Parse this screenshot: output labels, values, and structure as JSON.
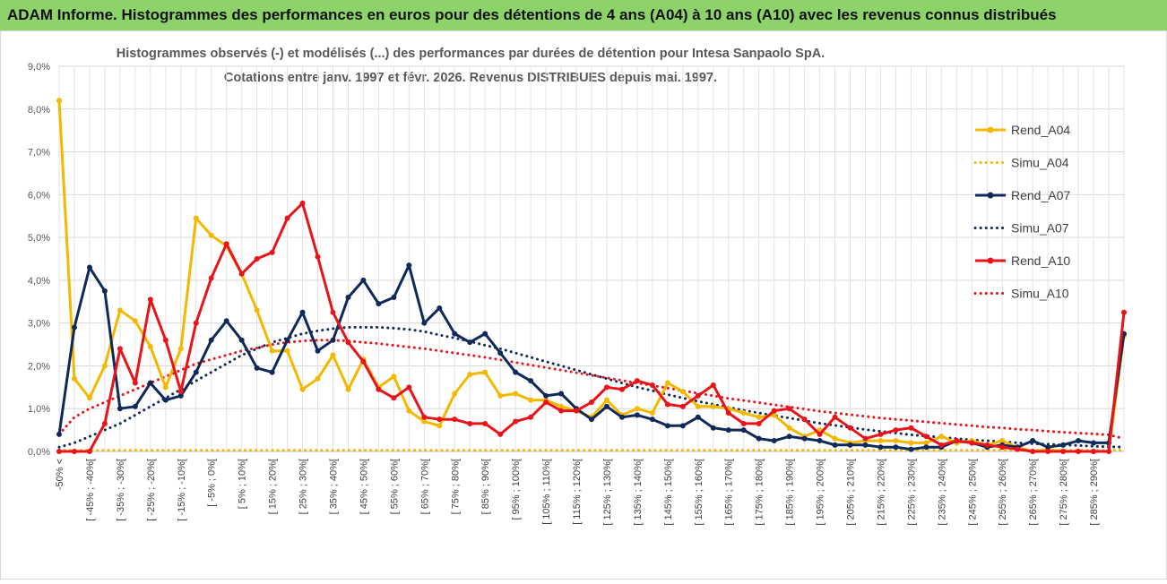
{
  "header": {
    "title": "ADAM Informe. Histogrammes des performances en euros pour des détentions de 4 ans (A04) à 10 ans (A10) avec les revenus connus distribués"
  },
  "chart_data": {
    "type": "line",
    "title_line1": "Histogrammes observés (-) et modélisés (...) des performances par durées de détention pour Intesa Sanpaolo SpA.",
    "title_line2": "Cotations entre janv. 1997 et févr. 2026. Revenus DISTRIBUES depuis mai. 1997.",
    "xlabel": "",
    "ylabel": "",
    "ylim": [
      0,
      9
    ],
    "y_ticks": [
      "0,0%",
      "1,0%",
      "2,0%",
      "3,0%",
      "4,0%",
      "5,0%",
      "6,0%",
      "7,0%",
      "8,0%",
      "9,0%"
    ],
    "grid": true,
    "legend_position": "right",
    "categories": [
      "-50% <",
      "[ -50% ; -45%[",
      "[ -45% ; -40%[",
      "[ -40% ; -35%[",
      "[ -35% ; -30%[",
      "[ -30% ; -25%[",
      "[ -25% ; -20%[",
      "[ -20% ; -15%[",
      "[ -15% ; -10%[",
      "[ -10% ; -5%[",
      "[ -5% ; 0%[",
      "[ 0% ; 5%[",
      "[ 5% ; 10%[",
      "[ 10% ; 15%[",
      "[ 15% ; 20%[",
      "[ 20% ; 25%[",
      "[ 25% ; 30%[",
      "[ 30% ; 35%[",
      "[ 35% ; 40%[",
      "[ 40% ; 45%[",
      "[ 45% ; 50%[",
      "[ 50% ; 55%[",
      "[ 55% ; 60%[",
      "[ 60% ; 65%[",
      "[ 65% ; 70%[",
      "[ 70% ; 75%[",
      "[ 75% ; 80%[",
      "[ 80% ; 85%[",
      "[ 85% ; 90%[",
      "[ 90% ; 95%[",
      "[ 95% ; 100%[",
      "[ 100% ; 105%[",
      "[ 105% ; 110%[",
      "[ 110% ; 115%[",
      "[ 115% ; 120%[",
      "[ 120% ; 125%[",
      "[ 125% ; 130%[",
      "[ 130% ; 135%[",
      "[ 135% ; 140%[",
      "[ 140% ; 145%[",
      "[ 145% ; 150%[",
      "[ 150% ; 155%[",
      "[ 155% ; 160%[",
      "[ 160% ; 165%[",
      "[ 165% ; 170%[",
      "[ 170% ; 175%[",
      "[ 175% ; 180%[",
      "[ 180% ; 185%[",
      "[ 185% ; 190%[",
      "[ 190% ; 195%[",
      "[ 195% ; 200%[",
      "[ 200% ; 205%[",
      "[ 205% ; 210%[",
      "[ 210% ; 215%[",
      "[ 215% ; 220%[",
      "[ 220% ; 225%[",
      "[ 225% ; 230%[",
      "[ 230% ; 235%[",
      "[ 235% ; 240%[",
      "[ 240% ; 245%[",
      "[ 245% ; 250%[",
      "[ 250% ; 255%[",
      "[ 255% ; 260%[",
      "[ 260% ; 265%[",
      "[ 265% ; 270%[",
      "[ 270% ; 275%[",
      "[ 275% ; 280%[",
      "[ 280% ; 285%[",
      "[ 285% ; 290%[",
      "[ 290% ; 295%[",
      "> 295%"
    ],
    "visible_tick_labels": [
      "-50% <",
      "[ -45% ; -40%[",
      "[ -35% ; -30%[",
      "[ -25% ; -20%[",
      "[ -15% ; -10%[",
      "[ -5% ; 0%[",
      "[ 5% ; 10%[",
      "[ 15% ; 20%[",
      "[ 25% ; 30%[",
      "[ 35% ; 40%[",
      "[ 45% ; 50%[",
      "[ 55% ; 60%[",
      "[ 65% ; 70%[",
      "[ 75% ; 80%[",
      "[ 85% ; 90%[",
      "[ 95% ; 100%[",
      "[ 105% ; 110%[",
      "[ 115% ; 120%[",
      "[ 125% ; 130%[",
      "[ 135% ; 140%[",
      "[ 145% ; 150%[",
      "[ 155% ; 160%[",
      "[ 165% ; 170%[",
      "[ 175% ; 180%[",
      "[ 185% ; 190%[",
      "[ 195% ; 200%[",
      "[ 205% ; 210%[",
      "[ 215% ; 220%[",
      "[ 225% ; 230%[",
      "[ 235% ; 240%[",
      "[ 245% ; 250%[",
      "[ 255% ; 260%[",
      "[ 265% ; 270%[",
      "[ 275% ; 280%[",
      "[ 285% ; 290%["
    ],
    "series": [
      {
        "name": "Rend_A04",
        "style": "solid",
        "color": "#f5b800",
        "values": [
          8.2,
          1.7,
          1.25,
          2.0,
          3.3,
          3.05,
          2.45,
          1.5,
          2.4,
          5.45,
          5.05,
          4.8,
          4.15,
          3.3,
          2.35,
          2.35,
          1.45,
          1.7,
          2.25,
          1.45,
          2.15,
          1.5,
          1.75,
          0.95,
          0.7,
          0.6,
          1.35,
          1.8,
          1.85,
          1.3,
          1.35,
          1.2,
          1.2,
          1.05,
          0.95,
          0.8,
          1.2,
          0.85,
          1.0,
          0.9,
          1.6,
          1.4,
          1.05,
          1.05,
          1.0,
          0.9,
          0.8,
          0.85,
          0.55,
          0.35,
          0.5,
          0.3,
          0.2,
          0.25,
          0.25,
          0.25,
          0.2,
          0.2,
          0.35,
          0.2,
          0.25,
          0.15,
          0.25,
          0.1,
          0.0,
          0.05,
          0.0,
          0.0,
          0.0,
          0.0,
          2.7
        ]
      },
      {
        "name": "Simu_A04",
        "style": "dotted",
        "color": "#f5b800",
        "values": [
          0.03,
          0.03,
          0.03,
          0.03,
          0.03,
          0.03,
          0.03,
          0.03,
          0.03,
          0.03,
          0.03,
          0.03,
          0.03,
          0.03,
          0.03,
          0.03,
          0.03,
          0.03,
          0.03,
          0.03,
          0.03,
          0.03,
          0.03,
          0.03,
          0.03,
          0.03,
          0.03,
          0.03,
          0.03,
          0.03,
          0.03,
          0.03,
          0.03,
          0.03,
          0.03,
          0.03,
          0.03,
          0.03,
          0.03,
          0.03,
          0.03,
          0.03,
          0.03,
          0.03,
          0.03,
          0.03,
          0.03,
          0.03,
          0.03,
          0.03,
          0.03,
          0.03,
          0.03,
          0.03,
          0.03,
          0.03,
          0.03,
          0.03,
          0.03,
          0.03,
          0.03,
          0.03,
          0.03,
          0.03,
          0.03,
          0.03,
          0.03,
          0.03,
          0.03,
          0.03,
          0.03
        ]
      },
      {
        "name": "Rend_A07",
        "style": "solid",
        "color": "#0f2a5a",
        "values": [
          0.4,
          2.9,
          4.3,
          3.75,
          1.0,
          1.05,
          1.6,
          1.2,
          1.3,
          1.85,
          2.6,
          3.05,
          2.6,
          1.95,
          1.85,
          2.6,
          3.25,
          2.35,
          2.6,
          3.6,
          4.0,
          3.45,
          3.6,
          4.35,
          3.0,
          3.35,
          2.75,
          2.55,
          2.75,
          2.3,
          1.85,
          1.65,
          1.3,
          1.35,
          1.0,
          0.75,
          1.05,
          0.8,
          0.85,
          0.75,
          0.6,
          0.6,
          0.8,
          0.55,
          0.5,
          0.5,
          0.3,
          0.25,
          0.35,
          0.3,
          0.25,
          0.15,
          0.15,
          0.15,
          0.1,
          0.1,
          0.05,
          0.1,
          0.1,
          0.25,
          0.2,
          0.1,
          0.15,
          0.1,
          0.25,
          0.1,
          0.15,
          0.25,
          0.2,
          0.2,
          2.75
        ]
      },
      {
        "name": "Simu_A07",
        "style": "dotted",
        "color": "#0f2a5a",
        "values": [
          0.1,
          0.2,
          0.35,
          0.5,
          0.65,
          0.85,
          1.05,
          1.25,
          1.45,
          1.65,
          1.85,
          2.05,
          2.25,
          2.4,
          2.55,
          2.65,
          2.75,
          2.82,
          2.87,
          2.9,
          2.9,
          2.9,
          2.88,
          2.85,
          2.8,
          2.72,
          2.65,
          2.57,
          2.48,
          2.4,
          2.3,
          2.2,
          2.1,
          2.0,
          1.9,
          1.8,
          1.7,
          1.6,
          1.5,
          1.42,
          1.33,
          1.25,
          1.17,
          1.1,
          1.03,
          0.96,
          0.9,
          0.84,
          0.78,
          0.72,
          0.66,
          0.61,
          0.56,
          0.51,
          0.47,
          0.43,
          0.39,
          0.36,
          0.33,
          0.3,
          0.27,
          0.25,
          0.23,
          0.2,
          0.18,
          0.17,
          0.15,
          0.14,
          0.12,
          0.11,
          0.1
        ]
      },
      {
        "name": "Rend_A10",
        "style": "solid",
        "color": "#e8141a",
        "values": [
          0.0,
          0.0,
          0.0,
          0.65,
          2.4,
          1.6,
          3.55,
          2.6,
          1.4,
          3.0,
          4.05,
          4.85,
          4.15,
          4.5,
          4.65,
          5.45,
          5.8,
          4.55,
          3.25,
          2.55,
          2.1,
          1.45,
          1.25,
          1.5,
          0.8,
          0.75,
          0.75,
          0.65,
          0.65,
          0.4,
          0.7,
          0.8,
          1.15,
          0.95,
          0.95,
          1.15,
          1.5,
          1.45,
          1.65,
          1.55,
          1.1,
          1.05,
          1.3,
          1.55,
          0.9,
          0.65,
          0.65,
          0.95,
          1.0,
          0.75,
          0.4,
          0.8,
          0.55,
          0.3,
          0.4,
          0.5,
          0.55,
          0.35,
          0.15,
          0.25,
          0.2,
          0.15,
          0.1,
          0.05,
          0.0,
          0.0,
          0.0,
          0.0,
          0.0,
          0.0,
          3.25
        ]
      },
      {
        "name": "Simu_A10",
        "style": "dotted",
        "color": "#e8141a",
        "values": [
          0.4,
          0.8,
          1.0,
          1.15,
          1.3,
          1.45,
          1.6,
          1.75,
          1.9,
          2.05,
          2.15,
          2.25,
          2.35,
          2.42,
          2.5,
          2.55,
          2.58,
          2.6,
          2.6,
          2.58,
          2.55,
          2.52,
          2.48,
          2.44,
          2.4,
          2.35,
          2.3,
          2.25,
          2.2,
          2.14,
          2.08,
          2.02,
          1.96,
          1.9,
          1.84,
          1.78,
          1.72,
          1.66,
          1.6,
          1.54,
          1.48,
          1.42,
          1.36,
          1.3,
          1.24,
          1.19,
          1.14,
          1.09,
          1.04,
          0.99,
          0.94,
          0.9,
          0.86,
          0.82,
          0.78,
          0.75,
          0.72,
          0.69,
          0.66,
          0.63,
          0.6,
          0.57,
          0.55,
          0.52,
          0.5,
          0.47,
          0.45,
          0.43,
          0.41,
          0.39,
          0.3
        ]
      }
    ]
  }
}
